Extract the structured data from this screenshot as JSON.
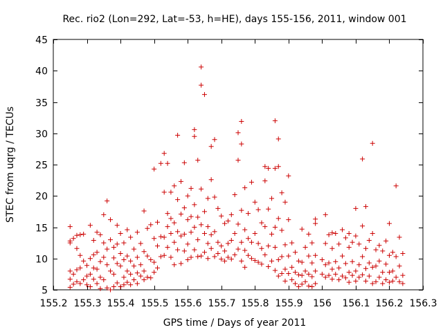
{
  "chart_data": {
    "type": "scatter",
    "title": "Rec. rio2 (Lon=292, Lat=-53, h=HE), days 155-156, 2011, window 001",
    "xlabel": "GPS time / Days of year 2011",
    "ylabel": "STEC from uqrg / TECUs",
    "xlim": [
      155.2,
      156.3
    ],
    "ylim": [
      5,
      45
    ],
    "xticks": [
      155.2,
      155.3,
      155.4,
      155.5,
      155.6,
      155.7,
      155.8,
      155.9,
      156,
      156.1,
      156.2,
      156.3
    ],
    "xtick_labels": [
      "155.2",
      "155.3",
      "155.4",
      "155.5",
      "155.6",
      "155.7",
      "155.8",
      "155.9",
      "156",
      "156.1",
      "156.2",
      "156.3"
    ],
    "yticks": [
      5,
      10,
      15,
      20,
      25,
      30,
      35,
      40,
      45
    ],
    "ytick_labels": [
      "5",
      "10",
      "15",
      "20",
      "25",
      "30",
      "35",
      "40",
      "45"
    ],
    "grid": false,
    "legend": "none",
    "marker": "+",
    "color": "#cc0000",
    "points": [
      [
        155.25,
        15.1
      ],
      [
        155.25,
        12.8
      ],
      [
        155.25,
        12.5
      ],
      [
        155.25,
        8.0
      ],
      [
        155.25,
        6.7
      ],
      [
        155.25,
        5.4
      ],
      [
        155.26,
        13.2
      ],
      [
        155.26,
        7.5
      ],
      [
        155.26,
        5.9
      ],
      [
        155.27,
        13.7
      ],
      [
        155.27,
        11.6
      ],
      [
        155.27,
        8.2
      ],
      [
        155.27,
        6.3
      ],
      [
        155.28,
        13.8
      ],
      [
        155.28,
        10.5
      ],
      [
        155.28,
        8.5
      ],
      [
        155.28,
        6.0
      ],
      [
        155.29,
        13.9
      ],
      [
        155.29,
        9.6
      ],
      [
        155.29,
        6.6
      ],
      [
        155.3,
        8.9
      ],
      [
        155.3,
        7.2
      ],
      [
        155.3,
        5.8
      ],
      [
        155.31,
        15.3
      ],
      [
        155.31,
        10.0
      ],
      [
        155.31,
        7.5
      ],
      [
        155.31,
        5.5
      ],
      [
        155.32,
        12.9
      ],
      [
        155.32,
        10.6
      ],
      [
        155.32,
        8.5
      ],
      [
        155.32,
        6.7
      ],
      [
        155.33,
        14.2
      ],
      [
        155.33,
        11.0
      ],
      [
        155.33,
        8.3
      ],
      [
        155.33,
        6.0
      ],
      [
        155.34,
        13.8
      ],
      [
        155.34,
        9.5
      ],
      [
        155.34,
        7.0
      ],
      [
        155.34,
        5.2
      ],
      [
        155.35,
        17.0
      ],
      [
        155.35,
        12.5
      ],
      [
        155.35,
        10.2
      ],
      [
        155.35,
        6.6
      ],
      [
        155.36,
        19.2
      ],
      [
        155.36,
        11.5
      ],
      [
        155.36,
        9.0
      ],
      [
        155.36,
        5.3
      ],
      [
        155.37,
        16.2
      ],
      [
        155.37,
        13.0
      ],
      [
        155.37,
        8.0
      ],
      [
        155.37,
        5.0
      ],
      [
        155.38,
        11.8
      ],
      [
        155.38,
        10.1
      ],
      [
        155.38,
        7.5
      ],
      [
        155.38,
        5.5
      ],
      [
        155.39,
        15.3
      ],
      [
        155.39,
        12.3
      ],
      [
        155.39,
        9.2
      ],
      [
        155.39,
        6.1
      ],
      [
        155.4,
        14.0
      ],
      [
        155.4,
        10.8
      ],
      [
        155.4,
        8.8
      ],
      [
        155.4,
        5.5
      ],
      [
        155.41,
        12.5
      ],
      [
        155.41,
        9.8
      ],
      [
        155.41,
        7.0
      ],
      [
        155.41,
        5.8
      ],
      [
        155.42,
        14.6
      ],
      [
        155.42,
        10.4
      ],
      [
        155.42,
        8.0
      ],
      [
        155.42,
        6.2
      ],
      [
        155.43,
        13.4
      ],
      [
        155.43,
        9.6
      ],
      [
        155.43,
        7.5
      ],
      [
        155.43,
        5.8
      ],
      [
        155.44,
        11.5
      ],
      [
        155.44,
        8.8
      ],
      [
        155.44,
        6.6
      ],
      [
        155.45,
        14.2
      ],
      [
        155.45,
        10.2
      ],
      [
        155.45,
        7.7
      ],
      [
        155.45,
        6.0
      ],
      [
        155.46,
        12.4
      ],
      [
        155.46,
        9.0
      ],
      [
        155.46,
        7.2
      ],
      [
        155.47,
        17.6
      ],
      [
        155.47,
        11.1
      ],
      [
        155.47,
        8.0
      ],
      [
        155.47,
        6.6
      ],
      [
        155.48,
        14.8
      ],
      [
        155.48,
        10.4
      ],
      [
        155.48,
        7.0
      ],
      [
        155.49,
        15.4
      ],
      [
        155.49,
        9.8
      ],
      [
        155.49,
        6.9
      ],
      [
        155.5,
        24.3
      ],
      [
        155.5,
        13.2
      ],
      [
        155.5,
        9.4
      ],
      [
        155.5,
        7.8
      ],
      [
        155.51,
        15.8
      ],
      [
        155.51,
        12.0
      ],
      [
        155.51,
        8.5
      ],
      [
        155.52,
        25.2
      ],
      [
        155.52,
        13.5
      ],
      [
        155.52,
        10.3
      ],
      [
        155.53,
        26.8
      ],
      [
        155.53,
        20.6
      ],
      [
        155.53,
        13.4
      ],
      [
        155.53,
        10.5
      ],
      [
        155.54,
        25.2
      ],
      [
        155.54,
        17.2
      ],
      [
        155.54,
        15.1
      ],
      [
        155.54,
        11.8
      ],
      [
        155.55,
        20.6
      ],
      [
        155.55,
        16.4
      ],
      [
        155.55,
        14.0
      ],
      [
        155.55,
        10.2
      ],
      [
        155.56,
        21.6
      ],
      [
        155.56,
        15.7
      ],
      [
        155.56,
        12.6
      ],
      [
        155.56,
        9.0
      ],
      [
        155.57,
        29.7
      ],
      [
        155.57,
        19.4
      ],
      [
        155.57,
        14.3
      ],
      [
        155.57,
        11.4
      ],
      [
        155.58,
        22.3
      ],
      [
        155.58,
        17.1
      ],
      [
        155.58,
        13.6
      ],
      [
        155.58,
        9.2
      ],
      [
        155.59,
        25.3
      ],
      [
        155.59,
        18.1
      ],
      [
        155.59,
        13.9
      ],
      [
        155.59,
        11.2
      ],
      [
        155.6,
        20.0
      ],
      [
        155.6,
        16.2
      ],
      [
        155.6,
        12.3
      ],
      [
        155.6,
        9.8
      ],
      [
        155.61,
        21.2
      ],
      [
        155.61,
        16.7
      ],
      [
        155.61,
        14.2
      ],
      [
        155.61,
        10.2
      ],
      [
        155.62,
        30.6
      ],
      [
        155.62,
        29.5
      ],
      [
        155.62,
        18.6
      ],
      [
        155.62,
        15.0
      ],
      [
        155.62,
        11.4
      ],
      [
        155.63,
        25.7
      ],
      [
        155.63,
        16.6
      ],
      [
        155.63,
        13.0
      ],
      [
        155.63,
        10.3
      ],
      [
        155.64,
        40.6
      ],
      [
        155.64,
        37.7
      ],
      [
        155.64,
        21.1
      ],
      [
        155.64,
        15.4
      ],
      [
        155.64,
        10.4
      ],
      [
        155.65,
        36.2
      ],
      [
        155.65,
        17.5
      ],
      [
        155.65,
        14.0
      ],
      [
        155.65,
        11.0
      ],
      [
        155.66,
        19.6
      ],
      [
        155.66,
        15.1
      ],
      [
        155.66,
        12.4
      ],
      [
        155.66,
        10.0
      ],
      [
        155.67,
        27.9
      ],
      [
        155.67,
        22.6
      ],
      [
        155.67,
        13.8
      ],
      [
        155.67,
        11.6
      ],
      [
        155.68,
        29.0
      ],
      [
        155.68,
        19.8
      ],
      [
        155.68,
        14.3
      ],
      [
        155.68,
        10.3
      ],
      [
        155.69,
        18.0
      ],
      [
        155.69,
        12.6
      ],
      [
        155.69,
        10.8
      ],
      [
        155.7,
        16.8
      ],
      [
        155.7,
        12.0
      ],
      [
        155.7,
        9.9
      ],
      [
        155.71,
        15.6
      ],
      [
        155.71,
        11.2
      ],
      [
        155.71,
        9.6
      ],
      [
        155.72,
        16.0
      ],
      [
        155.72,
        12.4
      ],
      [
        155.72,
        10.2
      ],
      [
        155.73,
        17.0
      ],
      [
        155.73,
        12.9
      ],
      [
        155.73,
        9.9
      ],
      [
        155.74,
        20.2
      ],
      [
        155.74,
        14.0
      ],
      [
        155.74,
        10.6
      ],
      [
        155.75,
        30.1
      ],
      [
        155.75,
        25.7
      ],
      [
        155.75,
        15.5
      ],
      [
        155.75,
        11.5
      ],
      [
        155.76,
        31.9
      ],
      [
        155.76,
        28.3
      ],
      [
        155.76,
        17.7
      ],
      [
        155.76,
        12.6
      ],
      [
        155.76,
        9.6
      ],
      [
        155.77,
        21.3
      ],
      [
        155.77,
        14.6
      ],
      [
        155.77,
        11.3
      ],
      [
        155.77,
        8.6
      ],
      [
        155.78,
        17.2
      ],
      [
        155.78,
        13.2
      ],
      [
        155.78,
        10.5
      ],
      [
        155.79,
        22.2
      ],
      [
        155.79,
        12.6
      ],
      [
        155.79,
        10.0
      ],
      [
        155.8,
        19.0
      ],
      [
        155.8,
        14.0
      ],
      [
        155.8,
        9.7
      ],
      [
        155.81,
        17.8
      ],
      [
        155.81,
        12.4
      ],
      [
        155.81,
        9.4
      ],
      [
        155.82,
        15.7
      ],
      [
        155.82,
        11.6
      ],
      [
        155.82,
        9.1
      ],
      [
        155.83,
        24.7
      ],
      [
        155.83,
        22.4
      ],
      [
        155.83,
        15.1
      ],
      [
        155.83,
        10.6
      ],
      [
        155.84,
        24.4
      ],
      [
        155.84,
        17.9
      ],
      [
        155.84,
        12.0
      ],
      [
        155.84,
        8.7
      ],
      [
        155.85,
        19.6
      ],
      [
        155.85,
        13.9
      ],
      [
        155.85,
        9.6
      ],
      [
        155.86,
        32.0
      ],
      [
        155.86,
        24.4
      ],
      [
        155.86,
        15.0
      ],
      [
        155.86,
        11.8
      ],
      [
        155.86,
        8.1
      ],
      [
        155.87,
        29.1
      ],
      [
        155.87,
        24.7
      ],
      [
        155.87,
        16.4
      ],
      [
        155.87,
        9.8
      ],
      [
        155.87,
        7.2
      ],
      [
        155.88,
        20.5
      ],
      [
        155.88,
        14.5
      ],
      [
        155.88,
        10.3
      ],
      [
        155.88,
        7.6
      ],
      [
        155.89,
        19.0
      ],
      [
        155.89,
        12.2
      ],
      [
        155.89,
        8.3
      ],
      [
        155.89,
        6.4
      ],
      [
        155.9,
        23.2
      ],
      [
        155.9,
        16.2
      ],
      [
        155.9,
        10.4
      ],
      [
        155.9,
        7.6
      ],
      [
        155.91,
        12.5
      ],
      [
        155.91,
        8.6
      ],
      [
        155.91,
        6.6
      ],
      [
        155.92,
        11.0
      ],
      [
        155.92,
        7.8
      ],
      [
        155.92,
        6.0
      ],
      [
        155.93,
        9.6
      ],
      [
        155.93,
        7.4
      ],
      [
        155.93,
        5.5
      ],
      [
        155.94,
        14.7
      ],
      [
        155.94,
        9.4
      ],
      [
        155.94,
        7.3
      ],
      [
        155.94,
        5.9
      ],
      [
        155.95,
        11.8
      ],
      [
        155.95,
        8.0
      ],
      [
        155.95,
        6.3
      ],
      [
        155.96,
        13.9
      ],
      [
        155.96,
        10.4
      ],
      [
        155.96,
        7.5
      ],
      [
        155.96,
        5.6
      ],
      [
        155.97,
        12.5
      ],
      [
        155.97,
        9.3
      ],
      [
        155.97,
        7.1
      ],
      [
        155.97,
        5.5
      ],
      [
        155.98,
        16.3
      ],
      [
        155.98,
        15.6
      ],
      [
        155.98,
        10.5
      ],
      [
        155.98,
        8.0
      ],
      [
        155.98,
        6.0
      ],
      [
        156.0,
        9.8
      ],
      [
        156.0,
        7.5
      ],
      [
        156.01,
        17.0
      ],
      [
        156.01,
        12.4
      ],
      [
        156.01,
        9.0
      ],
      [
        156.01,
        7.0
      ],
      [
        156.02,
        13.8
      ],
      [
        156.02,
        9.3
      ],
      [
        156.02,
        7.3
      ],
      [
        156.03,
        14.1
      ],
      [
        156.03,
        11.6
      ],
      [
        156.03,
        8.3
      ],
      [
        156.03,
        6.7
      ],
      [
        156.04,
        14.0
      ],
      [
        156.04,
        9.5
      ],
      [
        156.04,
        7.5
      ],
      [
        156.05,
        12.3
      ],
      [
        156.05,
        8.5
      ],
      [
        156.05,
        6.6
      ],
      [
        156.06,
        14.6
      ],
      [
        156.06,
        10.4
      ],
      [
        156.06,
        7.2
      ],
      [
        156.07,
        13.3
      ],
      [
        156.07,
        9.2
      ],
      [
        156.07,
        6.9
      ],
      [
        156.08,
        14.0
      ],
      [
        156.08,
        11.8
      ],
      [
        156.08,
        7.8
      ],
      [
        156.08,
        6.2
      ],
      [
        156.09,
        12.6
      ],
      [
        156.09,
        9.5
      ],
      [
        156.09,
        7.3
      ],
      [
        156.1,
        18.0
      ],
      [
        156.1,
        13.6
      ],
      [
        156.1,
        8.0
      ],
      [
        156.1,
        6.4
      ],
      [
        156.11,
        12.3
      ],
      [
        156.11,
        9.0
      ],
      [
        156.11,
        7.0
      ],
      [
        156.12,
        25.9
      ],
      [
        156.12,
        15.2
      ],
      [
        156.12,
        10.3
      ],
      [
        156.12,
        7.4
      ],
      [
        156.13,
        18.3
      ],
      [
        156.13,
        11.6
      ],
      [
        156.13,
        8.4
      ],
      [
        156.13,
        6.4
      ],
      [
        156.14,
        12.9
      ],
      [
        156.14,
        9.3
      ],
      [
        156.14,
        7.2
      ],
      [
        156.15,
        28.4
      ],
      [
        156.15,
        14.0
      ],
      [
        156.15,
        8.6
      ],
      [
        156.15,
        6.0
      ],
      [
        156.16,
        11.4
      ],
      [
        156.16,
        8.8
      ],
      [
        156.16,
        6.3
      ],
      [
        156.17,
        12.1
      ],
      [
        156.17,
        9.6
      ],
      [
        156.17,
        7.0
      ],
      [
        156.18,
        11.2
      ],
      [
        156.18,
        7.8
      ],
      [
        156.18,
        6.0
      ],
      [
        156.19,
        12.8
      ],
      [
        156.19,
        9.1
      ],
      [
        156.19,
        6.6
      ],
      [
        156.2,
        15.6
      ],
      [
        156.2,
        10.5
      ],
      [
        156.2,
        7.8
      ],
      [
        156.2,
        6.2
      ],
      [
        156.21,
        11.0
      ],
      [
        156.21,
        8.0
      ],
      [
        156.21,
        6.4
      ],
      [
        156.22,
        21.6
      ],
      [
        156.22,
        10.3
      ],
      [
        156.22,
        7.0
      ],
      [
        156.23,
        13.4
      ],
      [
        156.23,
        8.8
      ],
      [
        156.23,
        6.3
      ],
      [
        156.24,
        10.8
      ],
      [
        156.24,
        7.3
      ],
      [
        156.24,
        6.0
      ]
    ]
  }
}
